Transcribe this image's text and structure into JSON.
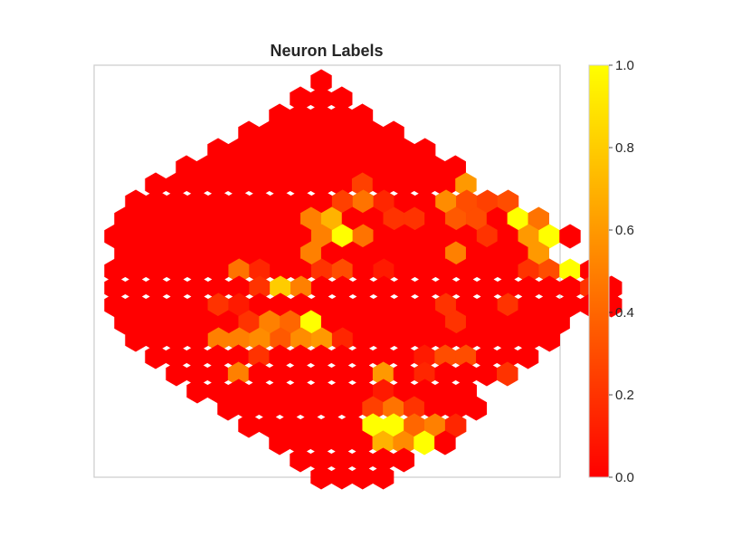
{
  "chart_data": {
    "type": "heatmap",
    "subtype": "hexagonal-som-map",
    "title": "Neuron Labels",
    "grid_on": false,
    "colormap": "autumn",
    "colors": {
      "low": "#ff0000",
      "high": "#ffff00"
    },
    "colorbar": {
      "position": "right",
      "range": [
        0,
        1
      ],
      "ticks": [
        "0.0",
        "0.2",
        "0.4",
        "0.6",
        "0.8",
        "1.0"
      ]
    },
    "rows": [
      {
        "row": 0,
        "values": [
          0.0
        ]
      },
      {
        "row": 1,
        "values": [
          0.0,
          0.0,
          0.0
        ]
      },
      {
        "row": 2,
        "values": [
          0.0,
          0.0,
          0.0,
          0.0,
          0.0
        ]
      },
      {
        "row": 3,
        "values": [
          0.0,
          0.0,
          0.0,
          0.0,
          0.0,
          0.0,
          0.0,
          0.0
        ]
      },
      {
        "row": 4,
        "values": [
          0.0,
          0.0,
          0.0,
          0.0,
          0.0,
          0.0,
          0.0,
          0.0,
          0.0,
          0.0,
          0.0
        ]
      },
      {
        "row": 5,
        "values": [
          0.0,
          0.0,
          0.0,
          0.0,
          0.0,
          0.0,
          0.0,
          0.0,
          0.0,
          0.0,
          0.0,
          0.0,
          0.0,
          0.0
        ]
      },
      {
        "row": 6,
        "values": [
          0.0,
          0.0,
          0.0,
          0.0,
          0.0,
          0.0,
          0.0,
          0.0,
          0.0,
          0.0,
          0.25,
          0.0,
          0.0,
          0.0,
          0.0,
          0.6
        ]
      },
      {
        "row": 7,
        "values": [
          0.0,
          0.0,
          0.0,
          0.0,
          0.0,
          0.0,
          0.0,
          0.0,
          0.0,
          0.0,
          0.25,
          0.45,
          0.15,
          0.0,
          0.0,
          0.55,
          0.3,
          0.25,
          0.3
        ]
      },
      {
        "row": 8,
        "values": [
          0.0,
          0.0,
          0.0,
          0.0,
          0.0,
          0.0,
          0.0,
          0.0,
          0.0,
          0.5,
          0.7,
          0.0,
          0.0,
          0.2,
          0.2,
          0.0,
          0.35,
          0.3,
          0.0,
          1.0,
          0.45
        ]
      },
      {
        "row": 9,
        "values": [
          0.0,
          0.0,
          0.0,
          0.0,
          0.0,
          0.0,
          0.0,
          0.0,
          0.0,
          0.0,
          0.5,
          1.0,
          0.45,
          0.0,
          0.0,
          0.0,
          0.0,
          0.0,
          0.2,
          0.0,
          0.6,
          1.0,
          0.0
        ]
      },
      {
        "row": 10,
        "values": [
          0.0,
          0.0,
          0.0,
          0.0,
          0.0,
          0.0,
          0.0,
          0.0,
          0.0,
          0.5,
          0.0,
          0.0,
          0.0,
          0.0,
          0.0,
          0.0,
          0.5,
          0.0,
          0.0,
          0.0,
          0.6
        ]
      },
      {
        "row": 11,
        "values": [
          0.0,
          0.0,
          0.0,
          0.0,
          0.0,
          0.0,
          0.45,
          0.15,
          0.0,
          0.0,
          0.2,
          0.3,
          0.0,
          0.1,
          0.0,
          0.0,
          0.0,
          0.0,
          0.0,
          0.0,
          0.2,
          0.3,
          1.0,
          0.0
        ]
      },
      {
        "row": 12,
        "values": [
          0.0,
          0.0,
          0.0,
          0.0,
          0.0,
          0.0,
          0.0,
          0.2,
          0.8,
          0.5,
          0.0,
          0.0,
          0.0,
          0.0,
          0.0,
          0.0,
          0.0,
          0.0,
          0.0,
          0.0,
          0.0,
          0.0,
          0.0,
          0.2,
          0.0
        ]
      },
      {
        "row": 13,
        "values": [
          0.0,
          0.0,
          0.0,
          0.0,
          0.0,
          0.2,
          0.1,
          0.0,
          0.0,
          0.0,
          0.0,
          0.0,
          0.0,
          0.0,
          0.0,
          0.0,
          0.2,
          0.0,
          0.0,
          0.2,
          0.0,
          0.0,
          0.0,
          0.0,
          0.0
        ]
      },
      {
        "row": 14,
        "values": [
          0.0,
          0.0,
          0.0,
          0.0,
          0.0,
          0.0,
          0.2,
          0.5,
          0.4,
          1.0,
          0.0,
          0.0,
          0.0,
          0.0,
          0.0,
          0.0,
          0.2,
          0.0,
          0.0,
          0.0,
          0.0,
          0.0
        ]
      },
      {
        "row": 15,
        "values": [
          0.0,
          0.0,
          0.0,
          0.0,
          0.5,
          0.5,
          0.55,
          0.35,
          0.55,
          0.6,
          0.15,
          0.0,
          0.0,
          0.0,
          0.0,
          0.0,
          0.0,
          0.0,
          0.0,
          0.0,
          0.0
        ]
      },
      {
        "row": 16,
        "values": [
          0.0,
          0.0,
          0.0,
          0.0,
          0.0,
          0.2,
          0.0,
          0.0,
          0.0,
          0.0,
          0.0,
          0.0,
          0.0,
          0.1,
          0.3,
          0.3,
          0.0,
          0.0,
          0.0
        ]
      },
      {
        "row": 17,
        "values": [
          0.0,
          0.0,
          0.0,
          0.5,
          0.0,
          0.0,
          0.0,
          0.0,
          0.0,
          0.0,
          0.6,
          0.0,
          0.15,
          0.0,
          0.0,
          0.0,
          0.2
        ]
      },
      {
        "row": 18,
        "values": [
          0.0,
          0.0,
          0.0,
          0.0,
          0.0,
          0.0,
          0.0,
          0.0,
          0.0,
          0.1,
          0.0,
          0.0,
          0.0,
          0.0
        ]
      },
      {
        "row": 19,
        "values": [
          0.0,
          0.0,
          0.0,
          0.0,
          0.0,
          0.0,
          0.0,
          0.25,
          0.45,
          0.2,
          0.0,
          0.0,
          0.0
        ]
      },
      {
        "row": 20,
        "values": [
          0.0,
          0.0,
          0.0,
          0.0,
          0.0,
          0.0,
          1.0,
          1.0,
          0.4,
          0.5,
          0.15
        ]
      },
      {
        "row": 21,
        "values": [
          0.0,
          0.0,
          0.0,
          0.0,
          0.0,
          0.7,
          0.55,
          1.0,
          0.0
        ]
      },
      {
        "row": 22,
        "values": [
          0.0,
          0.0,
          0.0,
          0.0,
          0.0,
          0.0
        ]
      },
      {
        "row": 23,
        "values": [
          0.0,
          0.0,
          0.0,
          0.0
        ]
      }
    ]
  }
}
